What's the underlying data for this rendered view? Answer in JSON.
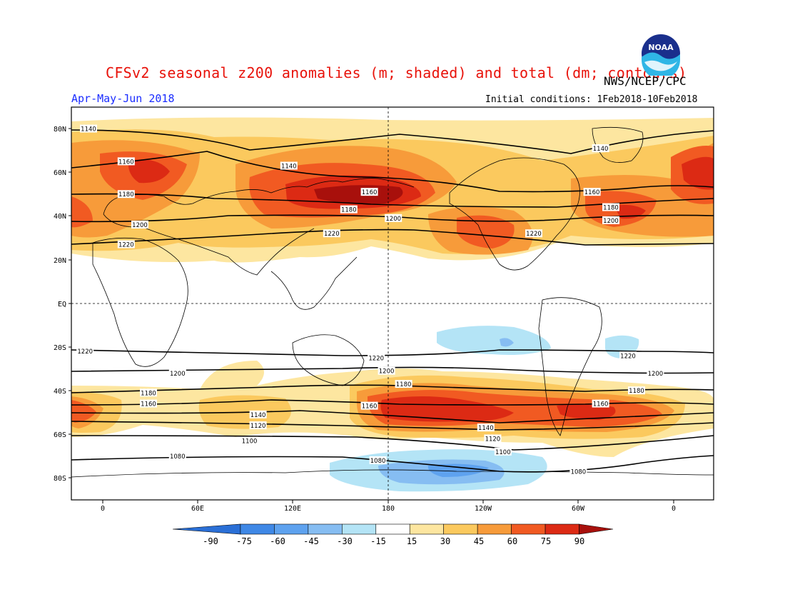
{
  "header": {
    "title": "CFSv2 seasonal z200 anomalies (m; shaded) and total (dm; contours)",
    "agency": "NWS/NCEP/CPC",
    "period": "Apr-May-Jun 2018",
    "initial_conditions": "Initial conditions: 1Feb2018-10Feb2018",
    "logo_text": "NOAA"
  },
  "map": {
    "projection": "cylindrical equidistant",
    "lon_range": [
      -20,
      355
    ],
    "lat_range": [
      -90,
      90
    ],
    "lat_ticks": [
      "80N",
      "60N",
      "40N",
      "20N",
      "EQ",
      "20S",
      "40S",
      "60S",
      "80S"
    ],
    "lon_ticks": [
      "0",
      "60E",
      "120E",
      "180",
      "120W",
      "60W",
      "0"
    ],
    "reference_lines": [
      "equator (dashed)",
      "180 meridian (dashed)"
    ]
  },
  "contours": {
    "units": "dm",
    "labels": [
      {
        "value": "1140",
        "lon": -10,
        "lat": 80
      },
      {
        "value": "1160",
        "lon": 12,
        "lat": 65
      },
      {
        "value": "1180",
        "lon": 12,
        "lat": 50
      },
      {
        "value": "1200",
        "lon": 20,
        "lat": 36
      },
      {
        "value": "1220",
        "lon": 12,
        "lat": 27
      },
      {
        "value": "1140",
        "lon": 107,
        "lat": 63
      },
      {
        "value": "1160",
        "lon": 154,
        "lat": 51
      },
      {
        "value": "1180",
        "lon": 142,
        "lat": 43
      },
      {
        "value": "1200",
        "lon": 168,
        "lat": 39
      },
      {
        "value": "1220",
        "lon": 132,
        "lat": 32
      },
      {
        "value": "1140",
        "lon": 289,
        "lat": 71
      },
      {
        "value": "1160",
        "lon": 284,
        "lat": 51
      },
      {
        "value": "1180",
        "lon": 295,
        "lat": 44
      },
      {
        "value": "1200",
        "lon": 295,
        "lat": 38
      },
      {
        "value": "1220",
        "lon": 250,
        "lat": 32
      },
      {
        "value": "1220",
        "lon": -12,
        "lat": -22
      },
      {
        "value": "1200",
        "lon": 42,
        "lat": -32
      },
      {
        "value": "1180",
        "lon": 25,
        "lat": -41
      },
      {
        "value": "1160",
        "lon": 25,
        "lat": -46
      },
      {
        "value": "1140",
        "lon": 89,
        "lat": -51
      },
      {
        "value": "1120",
        "lon": 89,
        "lat": -56
      },
      {
        "value": "1100",
        "lon": 84,
        "lat": -63
      },
      {
        "value": "1080",
        "lon": 42,
        "lat": -70
      },
      {
        "value": "1220",
        "lon": 158,
        "lat": -25
      },
      {
        "value": "1200",
        "lon": 164,
        "lat": -31
      },
      {
        "value": "1180",
        "lon": 174,
        "lat": -37
      },
      {
        "value": "1160",
        "lon": 154,
        "lat": -47
      },
      {
        "value": "1080",
        "lon": 159,
        "lat": -72
      },
      {
        "value": "1140",
        "lon": 222,
        "lat": -57
      },
      {
        "value": "1120",
        "lon": 226,
        "lat": -62
      },
      {
        "value": "1100",
        "lon": 232,
        "lat": -68
      },
      {
        "value": "1080",
        "lon": 276,
        "lat": -77
      },
      {
        "value": "1220",
        "lon": 305,
        "lat": -24
      },
      {
        "value": "1200",
        "lon": 321,
        "lat": -32
      },
      {
        "value": "1180",
        "lon": 310,
        "lat": -40
      },
      {
        "value": "1160",
        "lon": 289,
        "lat": -46
      }
    ]
  },
  "colorbar": {
    "units": "m",
    "labels": [
      "-90",
      "-75",
      "-60",
      "-45",
      "-30",
      "-15",
      "15",
      "30",
      "45",
      "60",
      "75",
      "90"
    ],
    "colors": [
      "#2a6fd6",
      "#3f88e6",
      "#5ea2ef",
      "#86bdf2",
      "#b4e4f6",
      "#ffffff",
      "#fde6a0",
      "#fbc95e",
      "#f79b3a",
      "#f15a22",
      "#dc2a14",
      "#a8100c"
    ]
  }
}
